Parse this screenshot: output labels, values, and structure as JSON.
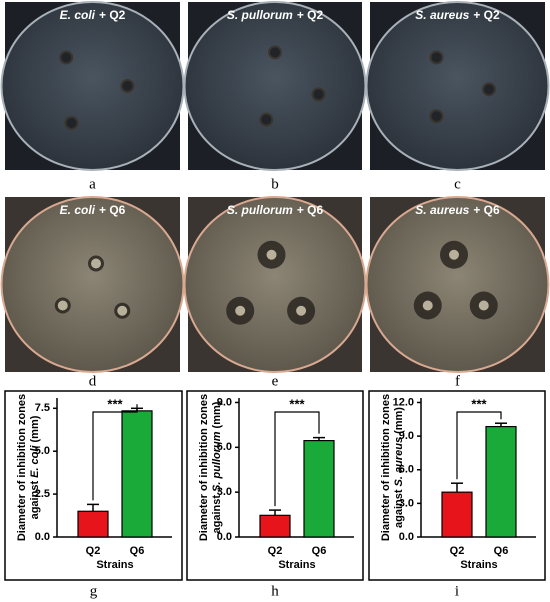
{
  "panels": [
    {
      "label": "a",
      "caption": [
        "E. coli",
        "+ Q2"
      ]
    },
    {
      "label": "b",
      "caption": [
        "S. pullorum",
        "+ Q2"
      ]
    },
    {
      "label": "c",
      "caption": [
        "S. aureus",
        "+ Q2"
      ]
    },
    {
      "label": "d",
      "caption": [
        "E. coli",
        "+ Q6"
      ]
    },
    {
      "label": "e",
      "caption": [
        "S. pullorum",
        "+ Q6"
      ]
    },
    {
      "label": "f",
      "caption": [
        "S. aureus",
        "+ Q6"
      ]
    }
  ],
  "chart_data": [
    {
      "type": "bar",
      "panel": "g",
      "ylabel": [
        [
          "Diameter of inhibition zones"
        ],
        [
          "against",
          "E. coli",
          "(mm)"
        ]
      ],
      "xlabel": "Strains",
      "categories": [
        "Q2",
        "Q6"
      ],
      "values": [
        1.5,
        7.35
      ],
      "errors": [
        0.4,
        0.15
      ],
      "colors": [
        "#e8141b",
        "#1aaa3a"
      ],
      "ylim": [
        0,
        8.1
      ],
      "yticks": [
        {
          "value": 0,
          "label": "0.0"
        },
        {
          "value": 2.5,
          "label": "2.5"
        },
        {
          "value": 5,
          "label": "5.0"
        },
        {
          "value": 7.5,
          "label": "7.5"
        }
      ],
      "significance": "***"
    },
    {
      "type": "bar",
      "panel": "h",
      "ylabel": [
        [
          "Diameter of inhibition zones"
        ],
        [
          "against",
          "S. pullorum",
          "(mm)"
        ]
      ],
      "xlabel": "Strains",
      "categories": [
        "Q2",
        "Q6"
      ],
      "values": [
        1.45,
        6.45
      ],
      "errors": [
        0.35,
        0.2
      ],
      "colors": [
        "#e8141b",
        "#1aaa3a"
      ],
      "ylim": [
        0,
        9.3
      ],
      "yticks": [
        {
          "value": 0,
          "label": "0.0"
        },
        {
          "value": 3,
          "label": "3.0"
        },
        {
          "value": 6,
          "label": "6.0"
        },
        {
          "value": 9,
          "label": "9.0"
        }
      ],
      "significance": "***"
    },
    {
      "type": "bar",
      "panel": "i",
      "ylabel": [
        [
          "Diameter of inhibition zones"
        ],
        [
          "against",
          "S. aureus",
          "(mm)"
        ]
      ],
      "xlabel": "Strains",
      "categories": [
        "Q2",
        "Q6"
      ],
      "values": [
        4.0,
        9.85
      ],
      "errors": [
        0.8,
        0.3
      ],
      "colors": [
        "#e8141b",
        "#1aaa3a"
      ],
      "ylim": [
        0,
        12.4
      ],
      "yticks": [
        {
          "value": 0,
          "label": "0.0"
        },
        {
          "value": 3,
          "label": "3.0"
        },
        {
          "value": 6,
          "label": "6.0"
        },
        {
          "value": 9,
          "label": "9.0"
        },
        {
          "value": 12,
          "label": "12.0"
        }
      ],
      "significance": "***"
    }
  ]
}
